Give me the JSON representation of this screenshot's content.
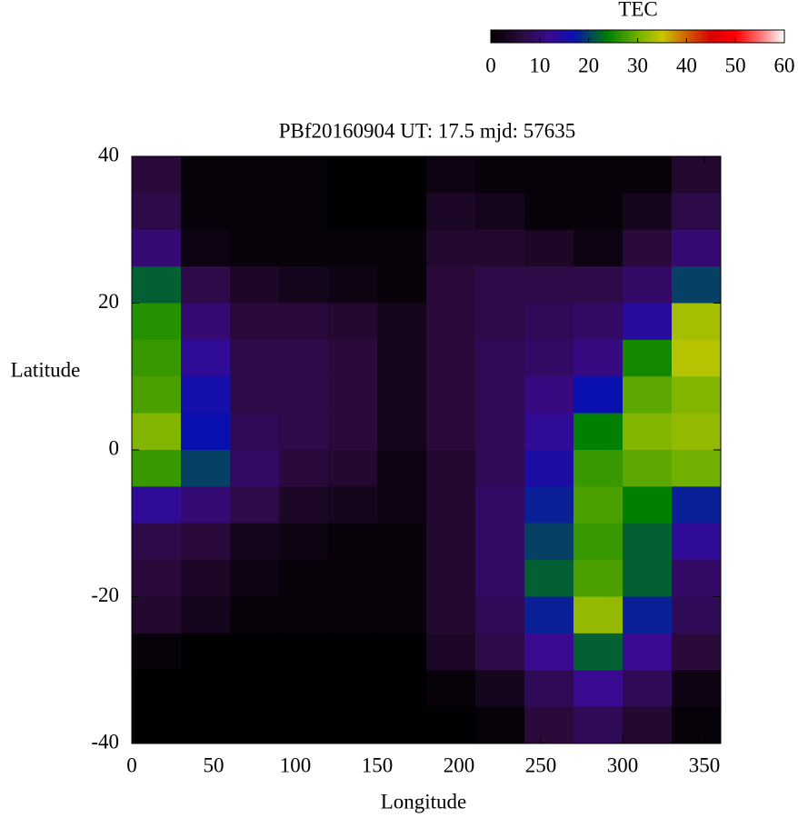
{
  "chart_data": {
    "type": "heatmap",
    "title": "PBf20160904  UT: 17.5  mjd: 57635",
    "x_label": "Longitude",
    "y_label": "Latitude",
    "xlim": [
      0,
      360
    ],
    "ylim": [
      -40,
      40
    ],
    "xticks": [
      0,
      50,
      100,
      150,
      200,
      250,
      300,
      350
    ],
    "yticks": [
      -40,
      -20,
      0,
      20,
      40
    ],
    "x": [
      15,
      45,
      75,
      105,
      135,
      165,
      195,
      225,
      255,
      285,
      315,
      345
    ],
    "y": [
      37.5,
      32.5,
      27.5,
      22.5,
      17.5,
      12.5,
      7.5,
      2.5,
      -2.5,
      -7.5,
      -12.5,
      -17.5,
      -22.5,
      -27.5,
      -32.5,
      -37.5
    ],
    "z": [
      [
        6,
        1,
        1,
        1,
        0,
        0,
        2,
        1,
        1,
        1,
        1,
        5
      ],
      [
        7,
        1,
        1,
        1,
        0,
        0,
        4,
        3,
        1,
        1,
        3,
        7
      ],
      [
        10,
        2,
        1,
        1,
        1,
        1,
        5,
        5,
        4,
        2,
        6,
        10
      ],
      [
        22,
        7,
        4,
        3,
        2,
        1,
        6,
        7,
        7,
        7,
        9,
        20
      ],
      [
        26,
        10,
        6,
        6,
        5,
        3,
        6,
        7,
        8,
        9,
        14,
        33
      ],
      [
        27,
        13,
        7,
        7,
        6,
        3,
        6,
        8,
        9,
        11,
        25,
        34
      ],
      [
        28,
        16,
        7,
        7,
        6,
        3,
        6,
        8,
        11,
        17,
        29,
        31
      ],
      [
        31,
        17,
        8,
        7,
        6,
        3,
        6,
        8,
        13,
        24,
        31,
        32
      ],
      [
        27,
        20,
        9,
        6,
        5,
        2,
        5,
        8,
        15,
        27,
        29,
        30
      ],
      [
        13,
        10,
        7,
        4,
        3,
        2,
        5,
        9,
        18,
        28,
        24,
        18
      ],
      [
        7,
        6,
        3,
        2,
        1,
        1,
        5,
        9,
        20,
        27,
        22,
        13
      ],
      [
        6,
        4,
        2,
        1,
        1,
        1,
        5,
        9,
        22,
        28,
        22,
        9
      ],
      [
        5,
        3,
        1,
        1,
        1,
        1,
        5,
        8,
        18,
        32,
        18,
        8
      ],
      [
        1,
        0,
        0,
        0,
        0,
        0,
        4,
        7,
        12,
        22,
        12,
        6
      ],
      [
        0,
        0,
        0,
        0,
        0,
        0,
        1,
        3,
        8,
        12,
        8,
        2
      ],
      [
        0,
        0,
        0,
        0,
        0,
        0,
        0,
        1,
        6,
        8,
        5,
        1
      ]
    ],
    "colorbar_label": "TEC",
    "colorbar_lim": [
      0,
      60
    ],
    "colorbar_ticks": [
      0,
      10,
      20,
      30,
      40,
      50,
      60
    ],
    "colormap": [
      [
        0,
        "#000000"
      ],
      [
        6,
        "#2a0a3a"
      ],
      [
        12,
        "#3a0a90"
      ],
      [
        17,
        "#0a10b0"
      ],
      [
        24,
        "#008000"
      ],
      [
        30,
        "#70b000"
      ],
      [
        35,
        "#c8c800"
      ],
      [
        40,
        "#d06000"
      ],
      [
        45,
        "#d80000"
      ],
      [
        50,
        "#ff0000"
      ],
      [
        55,
        "#ff7070"
      ],
      [
        60,
        "#ffffff"
      ]
    ]
  }
}
